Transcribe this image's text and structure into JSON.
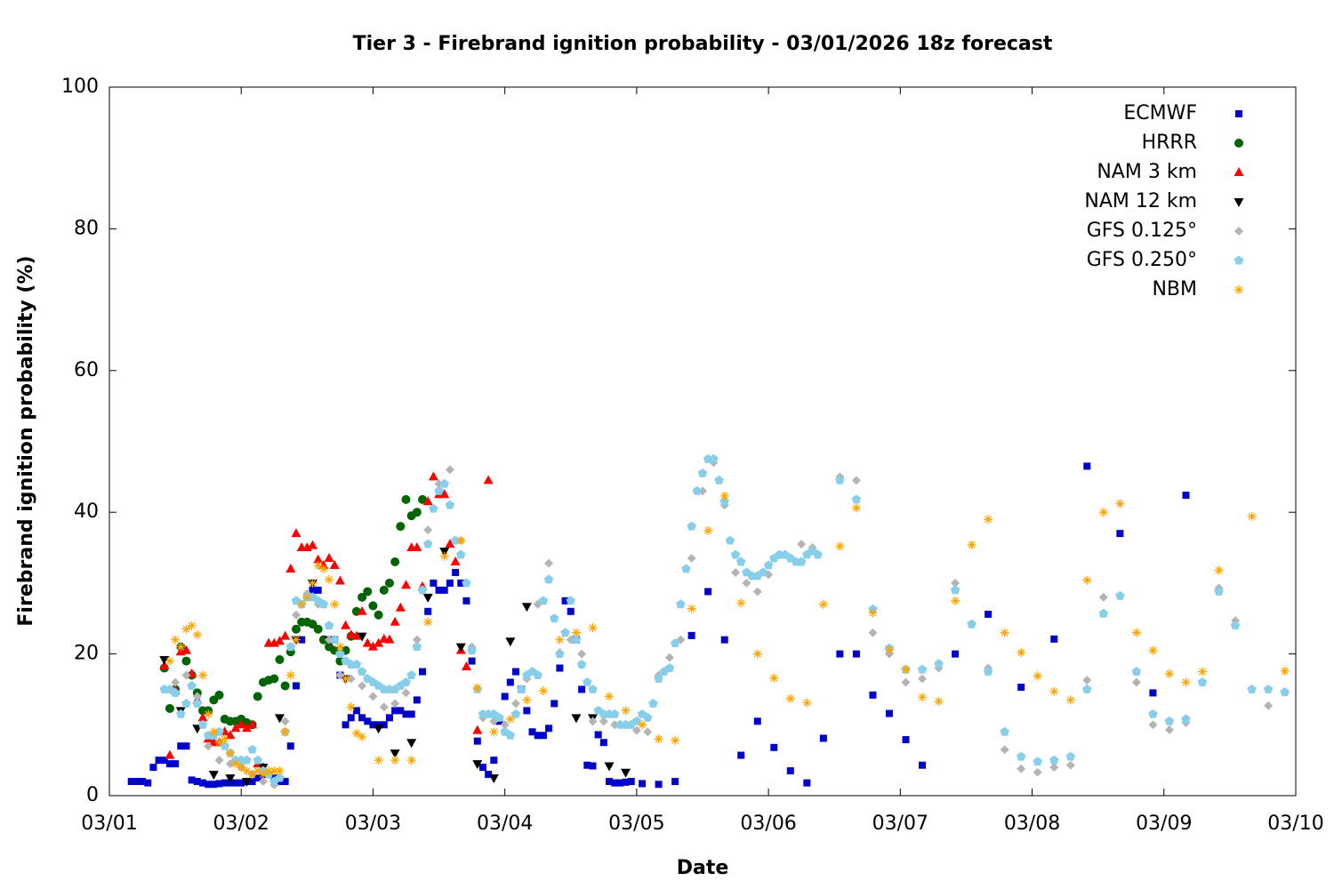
{
  "chart_data": {
    "type": "scatter",
    "title": "Tier 3 - Firebrand ignition probability - 03/01/2026 18z forecast",
    "xlabel": "Date",
    "ylabel": "Firebrand ignition probability (%)",
    "xlim": [
      0,
      216
    ],
    "ylim": [
      0,
      100
    ],
    "xticks": [
      {
        "value": 0,
        "label": "03/01"
      },
      {
        "value": 24,
        "label": "03/02"
      },
      {
        "value": 48,
        "label": "03/03"
      },
      {
        "value": 72,
        "label": "03/04"
      },
      {
        "value": 96,
        "label": "03/05"
      },
      {
        "value": 120,
        "label": "03/06"
      },
      {
        "value": 144,
        "label": "03/07"
      },
      {
        "value": 168,
        "label": "03/08"
      },
      {
        "value": 192,
        "label": "03/09"
      },
      {
        "value": 216,
        "label": "03/10"
      }
    ],
    "yticks": [
      0,
      20,
      40,
      60,
      80,
      100
    ],
    "legend": "top-right",
    "series": [
      {
        "name": "ECMWF",
        "color": "#0000cc",
        "marker": "square",
        "x": [
          4,
          5,
          6,
          7,
          8,
          9,
          10,
          11,
          12,
          13,
          14,
          15,
          16,
          17,
          18,
          19,
          20,
          21,
          22,
          23,
          24,
          25,
          26,
          27,
          28,
          29,
          30,
          31,
          32,
          33,
          34,
          35,
          36,
          37,
          38,
          41,
          42,
          43,
          44,
          45,
          46,
          47,
          48,
          49,
          50,
          51,
          52,
          53,
          54,
          55,
          56,
          57,
          58,
          59,
          60,
          61,
          62,
          63,
          64,
          65,
          66,
          67,
          68,
          69,
          70,
          71,
          72,
          73,
          74,
          75,
          76,
          77,
          78,
          79,
          80,
          81,
          82,
          83,
          84,
          85,
          86,
          87,
          88,
          89,
          90,
          91,
          92,
          93,
          94,
          95,
          97,
          100,
          103,
          106,
          109,
          112,
          115,
          118,
          121,
          124,
          127,
          130,
          133,
          136,
          139,
          142,
          145,
          148,
          154,
          160,
          166,
          172,
          178,
          184,
          190,
          196
        ],
        "values": [
          2,
          2,
          2,
          1.8,
          4,
          5,
          5,
          4.5,
          4.5,
          7,
          7,
          2.2,
          2,
          1.8,
          1.6,
          1.6,
          1.7,
          1.8,
          1.8,
          1.8,
          1.8,
          2,
          2,
          2.5,
          3,
          3,
          2.5,
          2,
          2,
          7,
          15.5,
          22,
          28,
          29,
          29,
          22,
          17,
          10,
          11,
          12,
          11,
          10.5,
          10,
          10,
          10,
          11,
          12,
          12,
          11.5,
          11.5,
          13.5,
          17.5,
          26,
          30,
          29,
          29,
          30,
          31.5,
          30,
          27.5,
          19,
          7.7,
          4,
          3,
          5,
          10.5,
          14,
          16,
          17.5,
          15,
          12,
          9,
          8.5,
          8.5,
          9.5,
          13,
          18,
          27.5,
          26,
          22,
          15,
          4.3,
          4.2,
          8.6,
          7.5,
          2,
          1.8,
          1.8,
          1.9,
          2,
          1.7,
          1.6,
          2,
          22.6,
          28.8,
          22,
          5.7,
          10.5,
          6.8,
          3.5,
          1.8,
          8.1,
          20,
          20,
          14.2,
          11.6,
          7.9,
          4.3,
          20,
          25.6,
          15.3,
          22.1,
          46.5,
          37,
          14.5,
          42.4
        ]
      },
      {
        "name": "HRRR",
        "color": "#006400",
        "marker": "circle",
        "x": [
          10,
          11,
          12,
          13,
          14,
          15,
          16,
          17,
          18,
          19,
          20,
          21,
          22,
          23,
          24,
          25,
          26,
          27,
          28,
          29,
          30,
          31,
          32,
          33,
          34,
          35,
          36,
          37,
          38,
          39,
          40,
          41,
          42,
          43,
          44,
          45,
          46,
          47,
          48,
          49,
          50,
          51,
          52,
          53,
          54,
          55,
          56,
          57
        ],
        "values": [
          18,
          12.3,
          15,
          21,
          19,
          17,
          14.5,
          12,
          12,
          13.5,
          14.2,
          10.8,
          10.5,
          10.5,
          10.8,
          10.3,
          10,
          14,
          16,
          16.3,
          16.5,
          19.2,
          15.5,
          20.3,
          23.5,
          24.5,
          24.5,
          24.2,
          23.5,
          22,
          21,
          20.5,
          19,
          20.5,
          22.5,
          26,
          28,
          28.8,
          26.8,
          25.5,
          29,
          30,
          33,
          38,
          41.8,
          39.5,
          40,
          41.8
        ]
      },
      {
        "name": "NAM 3 km",
        "color": "#ff0000",
        "marker": "triangle-up",
        "x": [
          10,
          11,
          12,
          13,
          14,
          15,
          16,
          17,
          18,
          19,
          20,
          21,
          22,
          23,
          24,
          25,
          26,
          27,
          28,
          29,
          30,
          31,
          32,
          33,
          34,
          35,
          36,
          37,
          38,
          39,
          40,
          41,
          42,
          43,
          44,
          45,
          46,
          47,
          48,
          49,
          50,
          51,
          52,
          53,
          54,
          55,
          56,
          57,
          58,
          59,
          60,
          61,
          62,
          63,
          64,
          65,
          67,
          69
        ],
        "values": [
          18.3,
          5.7,
          14.8,
          20.3,
          20.5,
          17.2,
          13.5,
          11,
          8,
          7.5,
          7.5,
          9,
          8.5,
          9.5,
          10,
          9.5,
          10,
          4.5,
          4,
          21.5,
          21.5,
          21.8,
          22.5,
          32,
          37,
          35,
          35,
          35.3,
          33.3,
          32.5,
          33.5,
          32.5,
          30.3,
          24,
          22.7,
          22.5,
          26,
          21.5,
          21,
          21.5,
          22.1,
          22,
          24.5,
          26.5,
          29.7,
          35,
          35,
          29.5,
          41.5,
          45,
          42.5,
          42.5,
          35.5,
          33,
          20.5,
          18.2,
          9.2,
          44.5
        ]
      },
      {
        "name": "NAM 12 km",
        "color": "#000000",
        "marker": "triangle-down",
        "x": [
          10,
          13,
          16,
          19,
          22,
          25,
          28,
          31,
          34,
          37,
          40,
          43,
          46,
          49,
          52,
          55,
          58,
          61,
          64,
          67,
          70,
          73,
          76,
          85,
          88,
          91,
          94
        ],
        "values": [
          19.2,
          12,
          9.5,
          3,
          2.5,
          2,
          4,
          11,
          22,
          30,
          22,
          16.5,
          22.5,
          9.5,
          6,
          7.5,
          28,
          34.5,
          21,
          4.5,
          2.5,
          21.8,
          26.7,
          11,
          11,
          4.2,
          3.3
        ]
      },
      {
        "name": "GFS 0.125°",
        "color": "#b4b4b4",
        "marker": "diamond",
        "x": [
          10,
          12,
          14,
          16,
          18,
          20,
          22,
          24,
          26,
          28,
          30,
          32,
          34,
          36,
          38,
          40,
          42,
          44,
          46,
          48,
          50,
          52,
          54,
          56,
          58,
          60,
          62,
          64,
          66,
          68,
          70,
          72,
          74,
          76,
          78,
          80,
          82,
          84,
          86,
          88,
          90,
          92,
          94,
          96,
          98,
          100,
          102,
          104,
          106,
          108,
          110,
          112,
          114,
          116,
          118,
          120,
          122,
          124,
          126,
          128,
          133,
          136,
          139,
          142,
          145,
          148,
          151,
          154,
          157,
          160,
          163,
          166,
          169,
          172,
          175,
          178,
          181,
          184,
          187,
          190,
          193,
          196,
          199,
          202,
          205,
          211,
          214
        ],
        "values": [
          15,
          16,
          17,
          14,
          7,
          5,
          4.5,
          4,
          3,
          2,
          1.5,
          10.5,
          25.5,
          28.5,
          27,
          22,
          17,
          16.5,
          15.5,
          14,
          12.5,
          13,
          14.5,
          22,
          37.5,
          44,
          46,
          36,
          21,
          11,
          10.5,
          10,
          13,
          16.5,
          27,
          32.8,
          20.2,
          22,
          20,
          10.5,
          10.5,
          10,
          10,
          9.2,
          9,
          17,
          19.5,
          22,
          33.5,
          43,
          47,
          41,
          31.5,
          30,
          28.8,
          31.2,
          34,
          33.5,
          35.5,
          35,
          45,
          44.5,
          23,
          20,
          16,
          16.5,
          18,
          30,
          24.2,
          18,
          6.5,
          3.8,
          3.3,
          4,
          4.3,
          16.3,
          28,
          28.2,
          16,
          10,
          9.3,
          10.3,
          16,
          29.3,
          24.7,
          12.7,
          14.6
        ]
      },
      {
        "name": "GFS 0.250°",
        "color": "#87ceeb",
        "marker": "pentagon",
        "x": [
          10,
          11,
          12,
          13,
          14,
          15,
          16,
          17,
          18,
          19,
          20,
          21,
          22,
          23,
          24,
          25,
          26,
          27,
          28,
          29,
          30,
          31,
          32,
          33,
          34,
          35,
          36,
          37,
          38,
          39,
          40,
          41,
          42,
          43,
          44,
          45,
          46,
          47,
          48,
          49,
          50,
          51,
          52,
          53,
          54,
          55,
          56,
          57,
          58,
          59,
          60,
          61,
          62,
          63,
          64,
          65,
          66,
          67,
          68,
          69,
          70,
          71,
          72,
          73,
          74,
          75,
          76,
          77,
          78,
          79,
          80,
          81,
          82,
          83,
          84,
          85,
          86,
          87,
          88,
          89,
          90,
          91,
          92,
          93,
          94,
          95,
          96,
          97,
          98,
          99,
          100,
          101,
          102,
          103,
          104,
          105,
          106,
          107,
          108,
          109,
          110,
          111,
          112,
          113,
          114,
          115,
          116,
          117,
          118,
          119,
          120,
          121,
          122,
          123,
          124,
          125,
          126,
          127,
          128,
          129,
          133,
          136,
          139,
          142,
          145,
          148,
          151,
          154,
          157,
          160,
          163,
          166,
          169,
          172,
          175,
          178,
          181,
          184,
          187,
          190,
          193,
          196,
          199,
          202,
          205,
          208,
          211,
          214
        ],
        "values": [
          15,
          15,
          14.5,
          11.5,
          13,
          15.5,
          13,
          10,
          8.5,
          8.5,
          9,
          7,
          6,
          5,
          5,
          5,
          6.5,
          5,
          3.5,
          3,
          2,
          2.5,
          9,
          21,
          27.5,
          27,
          28,
          28,
          27.5,
          27,
          24,
          22,
          20,
          19,
          18.5,
          18.5,
          17.5,
          16.5,
          16,
          15.5,
          15,
          15,
          15,
          15.5,
          16,
          17,
          21,
          29,
          35.5,
          40.5,
          43,
          44,
          41,
          36,
          34,
          30,
          20.5,
          15,
          11.5,
          11.5,
          11.5,
          11,
          9,
          8.5,
          11.5,
          15,
          17,
          17.5,
          17,
          27.5,
          30.5,
          25,
          20,
          23,
          27.5,
          22,
          18.5,
          16,
          15,
          12,
          11.5,
          11.5,
          11.5,
          10,
          10,
          10,
          10.5,
          11.5,
          11,
          13,
          16.5,
          17.5,
          18,
          21.5,
          27,
          32,
          38,
          43,
          45.5,
          47.5,
          47.5,
          44.5,
          41.5,
          36,
          34,
          33,
          31.5,
          31,
          31,
          31.5,
          32.5,
          33.5,
          34,
          34,
          33.5,
          33,
          33,
          34,
          34.5,
          34,
          44.5,
          41.8,
          26.3,
          20.8,
          17.8,
          17.8,
          18.6,
          29,
          24.2,
          17.5,
          9,
          5.5,
          4.8,
          5,
          5.5,
          15,
          25.7,
          28.2,
          17.5,
          11.5,
          10.5,
          10.8,
          16,
          28.8,
          24,
          15,
          15,
          14.6
        ]
      },
      {
        "name": "NBM",
        "color": "#ffa500",
        "marker": "asterisk",
        "x": [
          11,
          12,
          13,
          14,
          15,
          16,
          17,
          18,
          19,
          20,
          21,
          22,
          23,
          24,
          25,
          26,
          27,
          28,
          29,
          30,
          31,
          32,
          33,
          34,
          35,
          36,
          37,
          38,
          39,
          40,
          41,
          42,
          43,
          44,
          45,
          46,
          49,
          52,
          55,
          58,
          61,
          64,
          67,
          70,
          73,
          76,
          79,
          82,
          85,
          88,
          91,
          94,
          97,
          100,
          103,
          106,
          109,
          112,
          115,
          118,
          121,
          124,
          127,
          130,
          133,
          136,
          139,
          142,
          145,
          148,
          151,
          154,
          157,
          160,
          163,
          166,
          169,
          172,
          175,
          178,
          181,
          184,
          187,
          190,
          193,
          196,
          199,
          202,
          208,
          214
        ],
        "values": [
          19,
          22,
          21,
          23.5,
          24,
          22.7,
          17,
          11.5,
          9,
          7.5,
          8,
          6,
          4.5,
          4,
          3.5,
          3,
          3.5,
          3,
          3.5,
          3.5,
          3.5,
          9,
          17,
          22,
          27,
          28,
          30,
          32.5,
          32,
          30.5,
          27,
          21,
          16.5,
          12.5,
          8.8,
          8.3,
          5,
          5,
          5,
          24.5,
          33.8,
          36,
          15.2,
          9,
          10.8,
          13.5,
          14.8,
          22,
          23,
          23.7,
          14,
          12,
          10,
          8,
          7.8,
          26.4,
          37.4,
          42.3,
          27.2,
          20,
          16.6,
          13.7,
          13.1,
          27,
          35.2,
          40.6,
          25.8,
          20.6,
          17.8,
          13.9,
          13.3,
          27.5,
          35.4,
          39,
          23,
          20.2,
          16.9,
          14.7,
          13.5,
          30.4,
          40,
          41.2,
          23,
          20.5,
          17.2,
          16,
          17.5,
          31.8,
          39.4,
          17.6
        ]
      }
    ]
  }
}
